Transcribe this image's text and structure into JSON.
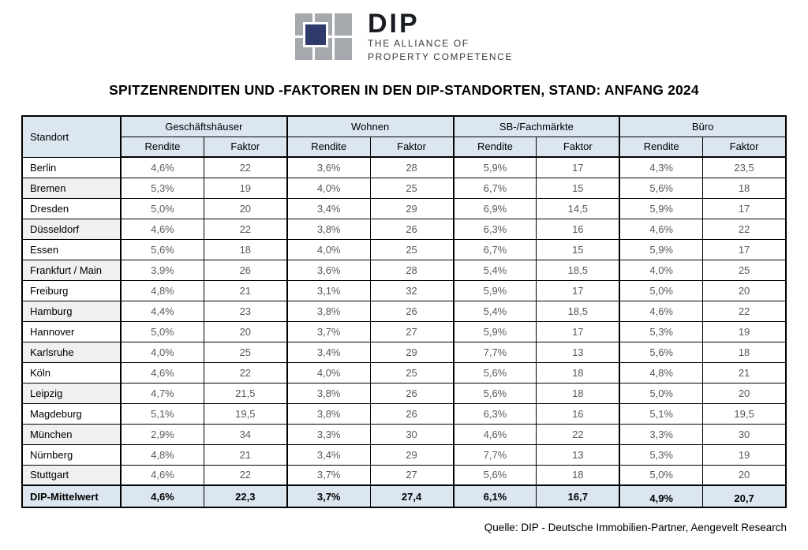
{
  "logo": {
    "brand": "DIP",
    "tagline_line1": "THE ALLIANCE OF",
    "tagline_line2": "PROPERTY COMPETENCE",
    "navy_color": "#2d3a6b",
    "gray_color": "#a5a8ad"
  },
  "title": "SPITZENRENDITEN UND -FAKTOREN IN DEN DIP-STANDORTEN, STAND: ANFANG 2024",
  "source": "Quelle: DIP - Deutsche Immobilien-Partner, Aengevelt Research",
  "colors": {
    "header_fill": "#dce6f1",
    "alt_row_fill": "#f0f0f0",
    "value_text": "#595959",
    "border": "#000000"
  },
  "table": {
    "corner_header": "Standort",
    "groups": [
      {
        "label": "Geschäftshäuser"
      },
      {
        "label": "Wohnen"
      },
      {
        "label": "SB-/Fachmärkte"
      },
      {
        "label": "Büro"
      }
    ],
    "sub_headers": [
      "Rendite",
      "Faktor"
    ],
    "rows": [
      {
        "standort": "Berlin",
        "values": [
          "4,6%",
          "22",
          "3,6%",
          "28",
          "5,9%",
          "17",
          "4,3%",
          "23,5"
        ]
      },
      {
        "standort": "Bremen",
        "values": [
          "5,3%",
          "19",
          "4,0%",
          "25",
          "6,7%",
          "15",
          "5,6%",
          "18"
        ]
      },
      {
        "standort": "Dresden",
        "values": [
          "5,0%",
          "20",
          "3,4%",
          "29",
          "6,9%",
          "14,5",
          "5,9%",
          "17"
        ]
      },
      {
        "standort": "Düsseldorf",
        "values": [
          "4,6%",
          "22",
          "3,8%",
          "26",
          "6,3%",
          "16",
          "4,6%",
          "22"
        ]
      },
      {
        "standort": "Essen",
        "values": [
          "5,6%",
          "18",
          "4,0%",
          "25",
          "6,7%",
          "15",
          "5,9%",
          "17"
        ]
      },
      {
        "standort": "Frankfurt / Main",
        "values": [
          "3,9%",
          "26",
          "3,6%",
          "28",
          "5,4%",
          "18,5",
          "4,0%",
          "25"
        ]
      },
      {
        "standort": "Freiburg",
        "values": [
          "4,8%",
          "21",
          "3,1%",
          "32",
          "5,9%",
          "17",
          "5,0%",
          "20"
        ]
      },
      {
        "standort": "Hamburg",
        "values": [
          "4,4%",
          "23",
          "3,8%",
          "26",
          "5,4%",
          "18,5",
          "4,6%",
          "22"
        ]
      },
      {
        "standort": "Hannover",
        "values": [
          "5,0%",
          "20",
          "3,7%",
          "27",
          "5,9%",
          "17",
          "5,3%",
          "19"
        ]
      },
      {
        "standort": "Karlsruhe",
        "values": [
          "4,0%",
          "25",
          "3,4%",
          "29",
          "7,7%",
          "13",
          "5,6%",
          "18"
        ]
      },
      {
        "standort": "Köln",
        "values": [
          "4,6%",
          "22",
          "4,0%",
          "25",
          "5,6%",
          "18",
          "4,8%",
          "21"
        ]
      },
      {
        "standort": "Leipzig",
        "values": [
          "4,7%",
          "21,5",
          "3,8%",
          "26",
          "5,6%",
          "18",
          "5,0%",
          "20"
        ]
      },
      {
        "standort": "Magdeburg",
        "values": [
          "5,1%",
          "19,5",
          "3,8%",
          "26",
          "6,3%",
          "16",
          "5,1%",
          "19,5"
        ]
      },
      {
        "standort": "München",
        "values": [
          "2,9%",
          "34",
          "3,3%",
          "30",
          "4,6%",
          "22",
          "3,3%",
          "30"
        ]
      },
      {
        "standort": "Nürnberg",
        "values": [
          "4,8%",
          "21",
          "3,4%",
          "29",
          "7,7%",
          "13",
          "5,3%",
          "19"
        ]
      },
      {
        "standort": "Stuttgart",
        "values": [
          "4,6%",
          "22",
          "3,7%",
          "27",
          "5,6%",
          "18",
          "5,0%",
          "20"
        ]
      }
    ],
    "summary": {
      "standort": "DIP-Mittelwert",
      "values": [
        "4,6%",
        "22,3",
        "3,7%",
        "27,4",
        "6,1%",
        "16,7",
        "4,9%",
        "20,7"
      ]
    }
  },
  "chart_data": {
    "type": "table",
    "title": "SPITZENRENDITEN UND -FAKTOREN IN DEN DIP-STANDORTEN, STAND: ANFANG 2024",
    "column_groups": [
      "Geschäftshäuser",
      "Wohnen",
      "SB-/Fachmärkte",
      "Büro"
    ],
    "sub_columns": [
      "Rendite",
      "Faktor"
    ],
    "row_label": "Standort"
  }
}
